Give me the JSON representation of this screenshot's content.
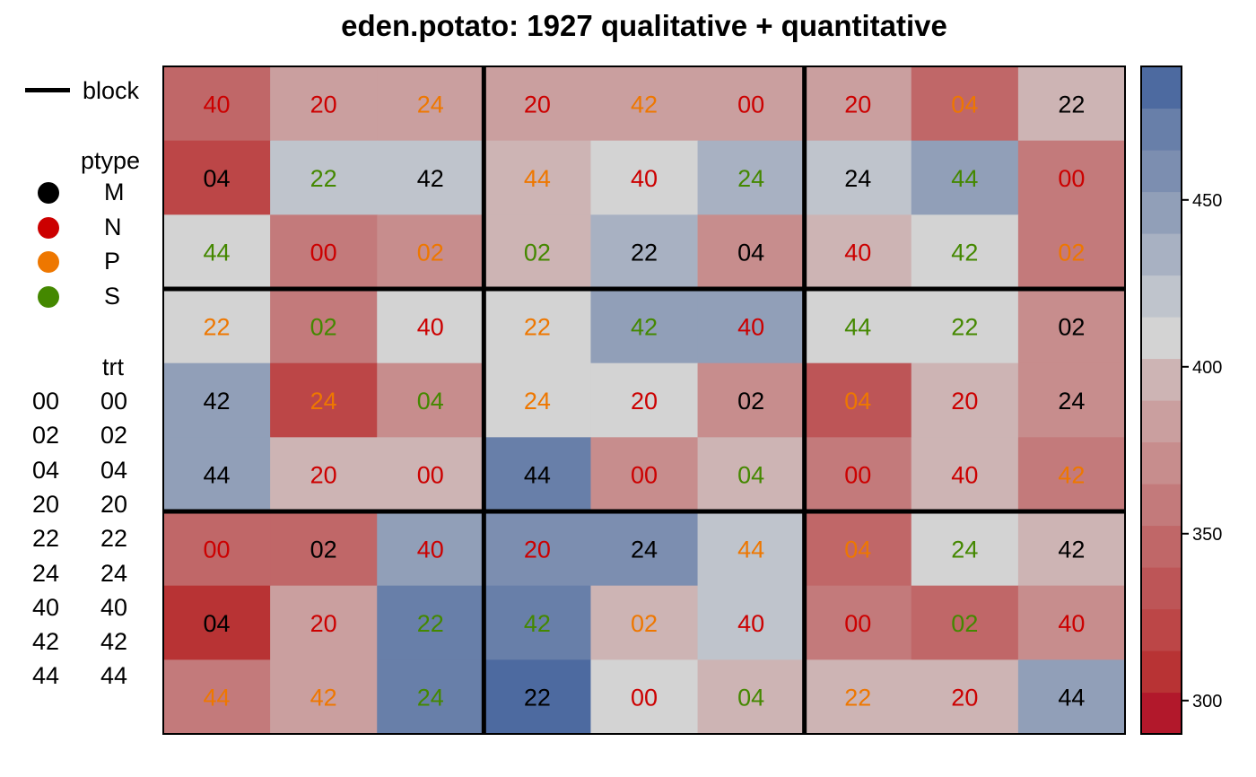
{
  "chart_data": {
    "type": "heatmap",
    "title": "eden.potato: 1927 qualitative + quantitative",
    "n_rows": 9,
    "n_cols": 9,
    "block_label": "block",
    "blocks": {
      "rows_per_block": 3,
      "cols_per_block": 3
    },
    "ptype_title": "ptype",
    "ptype_levels": [
      {
        "name": "M",
        "color": "#000000"
      },
      {
        "name": "N",
        "color": "#cc0000"
      },
      {
        "name": "P",
        "color": "#ee7700"
      },
      {
        "name": "S",
        "color": "#448800"
      }
    ],
    "trt_title": "trt",
    "trt_levels": [
      {
        "code": "00",
        "label": "00"
      },
      {
        "code": "02",
        "label": "02"
      },
      {
        "code": "04",
        "label": "04"
      },
      {
        "code": "20",
        "label": "20"
      },
      {
        "code": "22",
        "label": "22"
      },
      {
        "code": "24",
        "label": "24"
      },
      {
        "code": "40",
        "label": "40"
      },
      {
        "code": "42",
        "label": "42"
      },
      {
        "code": "44",
        "label": "44"
      }
    ],
    "labels": [
      [
        "40",
        "20",
        "24",
        "20",
        "42",
        "00",
        "20",
        "04",
        "22"
      ],
      [
        "04",
        "22",
        "42",
        "44",
        "40",
        "24",
        "24",
        "44",
        "00"
      ],
      [
        "44",
        "00",
        "02",
        "02",
        "22",
        "04",
        "40",
        "42",
        "02"
      ],
      [
        "22",
        "02",
        "40",
        "22",
        "42",
        "40",
        "44",
        "22",
        "02"
      ],
      [
        "42",
        "24",
        "04",
        "24",
        "20",
        "02",
        "04",
        "20",
        "24"
      ],
      [
        "44",
        "20",
        "00",
        "44",
        "00",
        "04",
        "00",
        "40",
        "42"
      ],
      [
        "00",
        "02",
        "40",
        "20",
        "24",
        "44",
        "04",
        "24",
        "42"
      ],
      [
        "04",
        "20",
        "22",
        "42",
        "02",
        "40",
        "00",
        "02",
        "40"
      ],
      [
        "44",
        "42",
        "24",
        "22",
        "00",
        "04",
        "22",
        "20",
        "44"
      ]
    ],
    "ptype": [
      [
        "N",
        "N",
        "P",
        "N",
        "P",
        "N",
        "N",
        "P",
        "M"
      ],
      [
        "M",
        "S",
        "M",
        "P",
        "N",
        "S",
        "M",
        "S",
        "N"
      ],
      [
        "S",
        "N",
        "P",
        "S",
        "M",
        "M",
        "N",
        "S",
        "P"
      ],
      [
        "P",
        "S",
        "N",
        "P",
        "S",
        "N",
        "S",
        "S",
        "M"
      ],
      [
        "M",
        "P",
        "S",
        "P",
        "N",
        "M",
        "P",
        "N",
        "M"
      ],
      [
        "M",
        "N",
        "N",
        "M",
        "N",
        "S",
        "N",
        "N",
        "P"
      ],
      [
        "N",
        "M",
        "N",
        "N",
        "M",
        "P",
        "P",
        "S",
        "M"
      ],
      [
        "M",
        "N",
        "S",
        "S",
        "P",
        "N",
        "N",
        "S",
        "N"
      ],
      [
        "P",
        "P",
        "S",
        "M",
        "N",
        "S",
        "P",
        "N",
        "M"
      ]
    ],
    "values": [
      [
        345,
        380,
        385,
        380,
        380,
        380,
        380,
        340,
        400
      ],
      [
        315,
        425,
        425,
        400,
        410,
        430,
        415,
        445,
        355
      ],
      [
        410,
        355,
        365,
        400,
        430,
        370,
        400,
        410,
        355
      ],
      [
        410,
        360,
        410,
        410,
        445,
        440,
        410,
        410,
        365
      ],
      [
        445,
        325,
        370,
        410,
        410,
        370,
        330,
        400,
        365
      ],
      [
        445,
        400,
        400,
        465,
        370,
        400,
        355,
        400,
        355
      ],
      [
        345,
        340,
        450,
        455,
        455,
        420,
        345,
        410,
        400
      ],
      [
        305,
        380,
        470,
        465,
        400,
        415,
        355,
        340,
        370
      ],
      [
        360,
        380,
        470,
        480,
        410,
        400,
        400,
        400,
        445
      ]
    ],
    "color_scale": {
      "min": 290,
      "max": 490,
      "ticks": [
        300,
        350,
        400,
        450
      ],
      "colors": [
        "#b2182b",
        "#b83334",
        "#bc4647",
        "#bd5557",
        "#c06768",
        "#c37a7b",
        "#c78d8d",
        "#ca9f9f",
        "#cdb4b4",
        "#d3d3d3",
        "#bfc4cc",
        "#a8b1c2",
        "#919fb8",
        "#7c8eb0",
        "#687fa9",
        "#4d6aa0"
      ]
    }
  }
}
